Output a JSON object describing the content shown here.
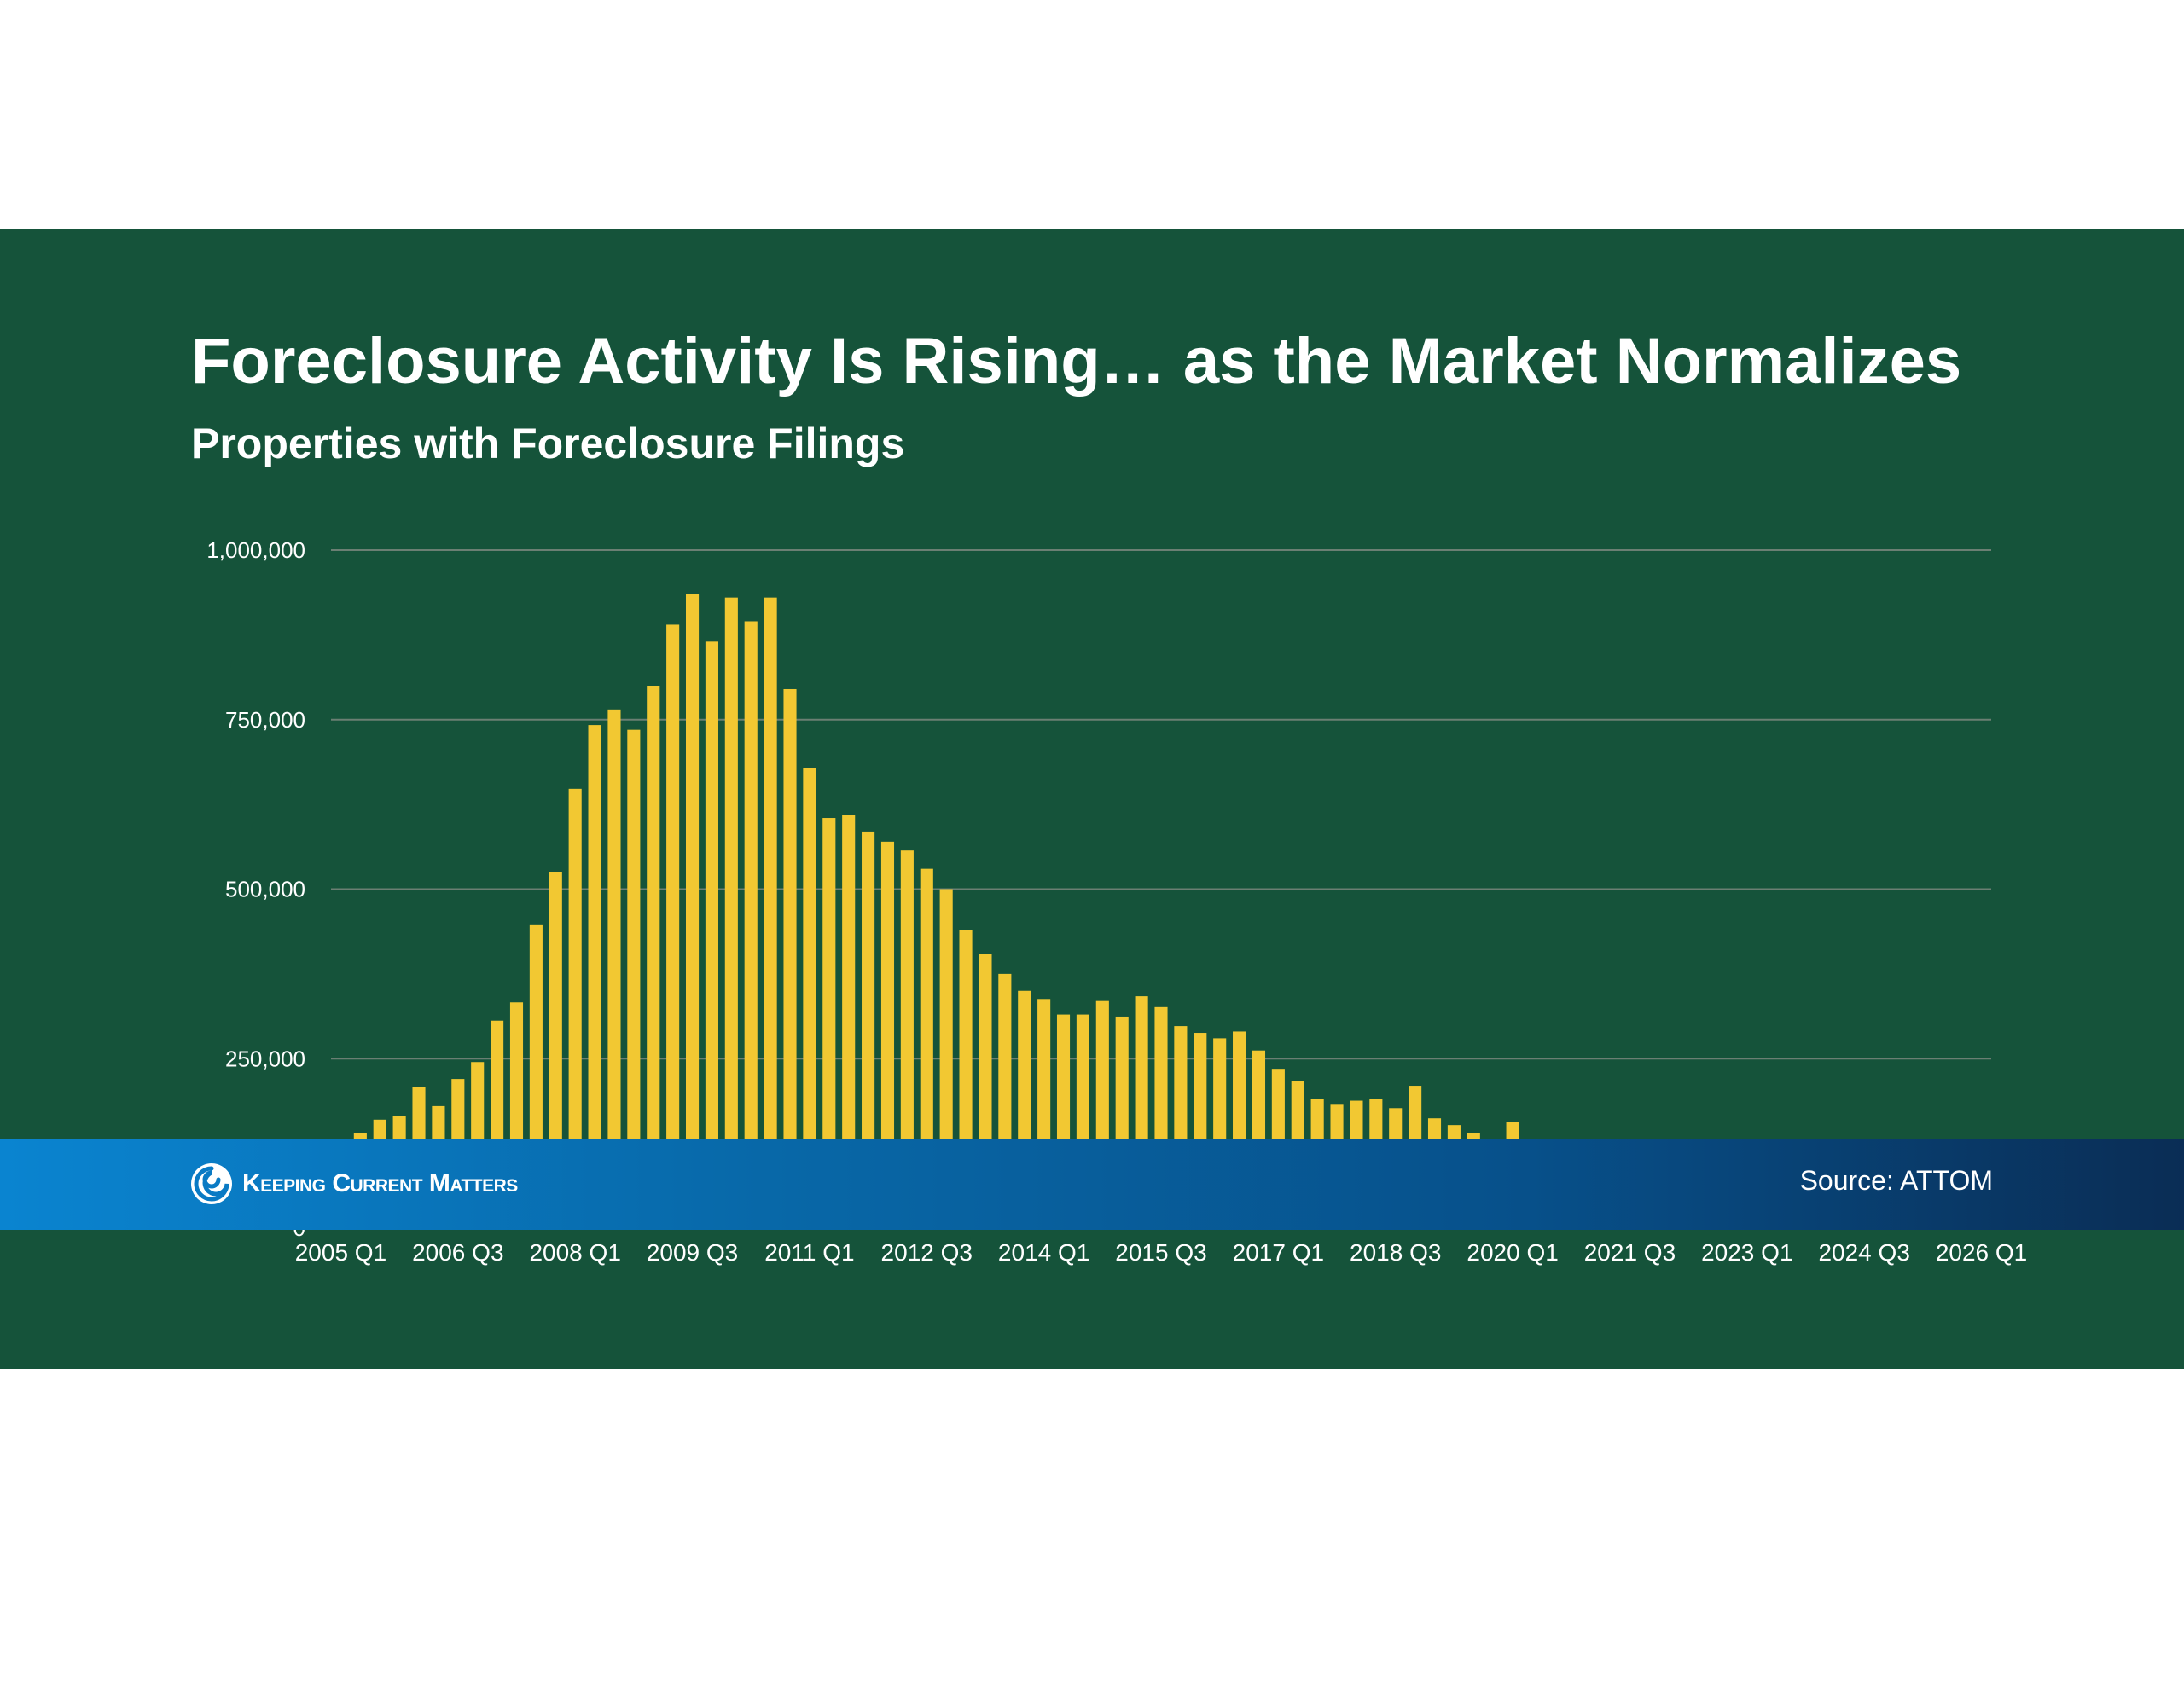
{
  "slide": {
    "title": "Foreclosure Activity Is Rising… as the Market Normalizes",
    "subtitle": "Properties with Foreclosure Filings",
    "source": "Source: ATTOM",
    "logo_text": "Keeping Current Matters"
  },
  "colors": {
    "background": "#15533a",
    "bar": "#f2c832",
    "gridline": "#6b7f73",
    "text": "#ffffff"
  },
  "chart_data": {
    "type": "bar",
    "title": "",
    "xlabel": "",
    "ylabel": "",
    "ylim": [
      0,
      1000000
    ],
    "grid": true,
    "ytick_labels": [
      "0",
      "250,000",
      "500,000",
      "750,000",
      "1,000,000"
    ],
    "ytick_values": [
      0,
      250000,
      500000,
      750000,
      1000000
    ],
    "xtick_labels": [
      "2005 Q1",
      "2006 Q3",
      "2008 Q1",
      "2009 Q3",
      "2011 Q1",
      "2012 Q3",
      "2014 Q1",
      "2015 Q3",
      "2017 Q1",
      "2018 Q3",
      "2020 Q1",
      "2021 Q3",
      "2023 Q1",
      "2024 Q3",
      "2026 Q1"
    ],
    "xtick_every": 6,
    "categories": [
      "2005 Q1",
      "2005 Q2",
      "2005 Q3",
      "2005 Q4",
      "2006 Q1",
      "2006 Q2",
      "2006 Q3",
      "2006 Q4",
      "2007 Q1",
      "2007 Q2",
      "2007 Q3",
      "2007 Q4",
      "2008 Q1",
      "2008 Q2",
      "2008 Q3",
      "2008 Q4",
      "2009 Q1",
      "2009 Q2",
      "2009 Q3",
      "2009 Q4",
      "2010 Q1",
      "2010 Q2",
      "2010 Q3",
      "2010 Q4",
      "2011 Q1",
      "2011 Q2",
      "2011 Q3",
      "2011 Q4",
      "2012 Q1",
      "2012 Q2",
      "2012 Q3",
      "2012 Q4",
      "2013 Q1",
      "2013 Q2",
      "2013 Q3",
      "2013 Q4",
      "2014 Q1",
      "2014 Q2",
      "2014 Q3",
      "2014 Q4",
      "2015 Q1",
      "2015 Q2",
      "2015 Q3",
      "2015 Q4",
      "2016 Q1",
      "2016 Q2",
      "2016 Q3",
      "2016 Q4",
      "2017 Q1",
      "2017 Q2",
      "2017 Q3",
      "2017 Q4",
      "2018 Q1",
      "2018 Q2",
      "2018 Q3",
      "2018 Q4",
      "2019 Q1",
      "2019 Q2",
      "2019 Q3",
      "2019 Q4",
      "2020 Q1",
      "2020 Q2",
      "2020 Q3",
      "2020 Q4",
      "2021 Q1",
      "2021 Q2",
      "2021 Q3",
      "2021 Q4",
      "2022 Q1",
      "2022 Q2",
      "2022 Q3",
      "2022 Q4",
      "2023 Q1",
      "2023 Q2",
      "2023 Q3",
      "2023 Q4",
      "2024 Q1",
      "2024 Q2",
      "2024 Q3",
      "2024 Q4",
      "2025 Q1",
      "2025 Q2",
      "2025 Q3",
      "2025 Q4",
      "2026 Q1"
    ],
    "values": [
      132000,
      140000,
      160000,
      165000,
      208000,
      180000,
      220000,
      245000,
      306000,
      333000,
      448000,
      525000,
      648000,
      742000,
      765000,
      735000,
      800000,
      890000,
      935000,
      865000,
      930000,
      895000,
      930000,
      795000,
      678000,
      605000,
      610000,
      585000,
      570000,
      557000,
      530000,
      500000,
      440000,
      405000,
      375000,
      350000,
      338000,
      315000,
      315000,
      335000,
      312000,
      342000,
      326000,
      298000,
      288000,
      280000,
      290000,
      262000,
      235000,
      217000,
      190000,
      182000,
      188000,
      190000,
      177000,
      210000,
      162000,
      152000,
      140000,
      110000,
      157000,
      30000,
      26000,
      30000,
      32000,
      36000,
      44000,
      55000,
      75000,
      88000,
      90000,
      88000,
      95000,
      96000,
      100000,
      93000,
      95000,
      88000,
      88000,
      85000,
      92000,
      100000,
      100000,
      113000,
      115000
    ]
  }
}
